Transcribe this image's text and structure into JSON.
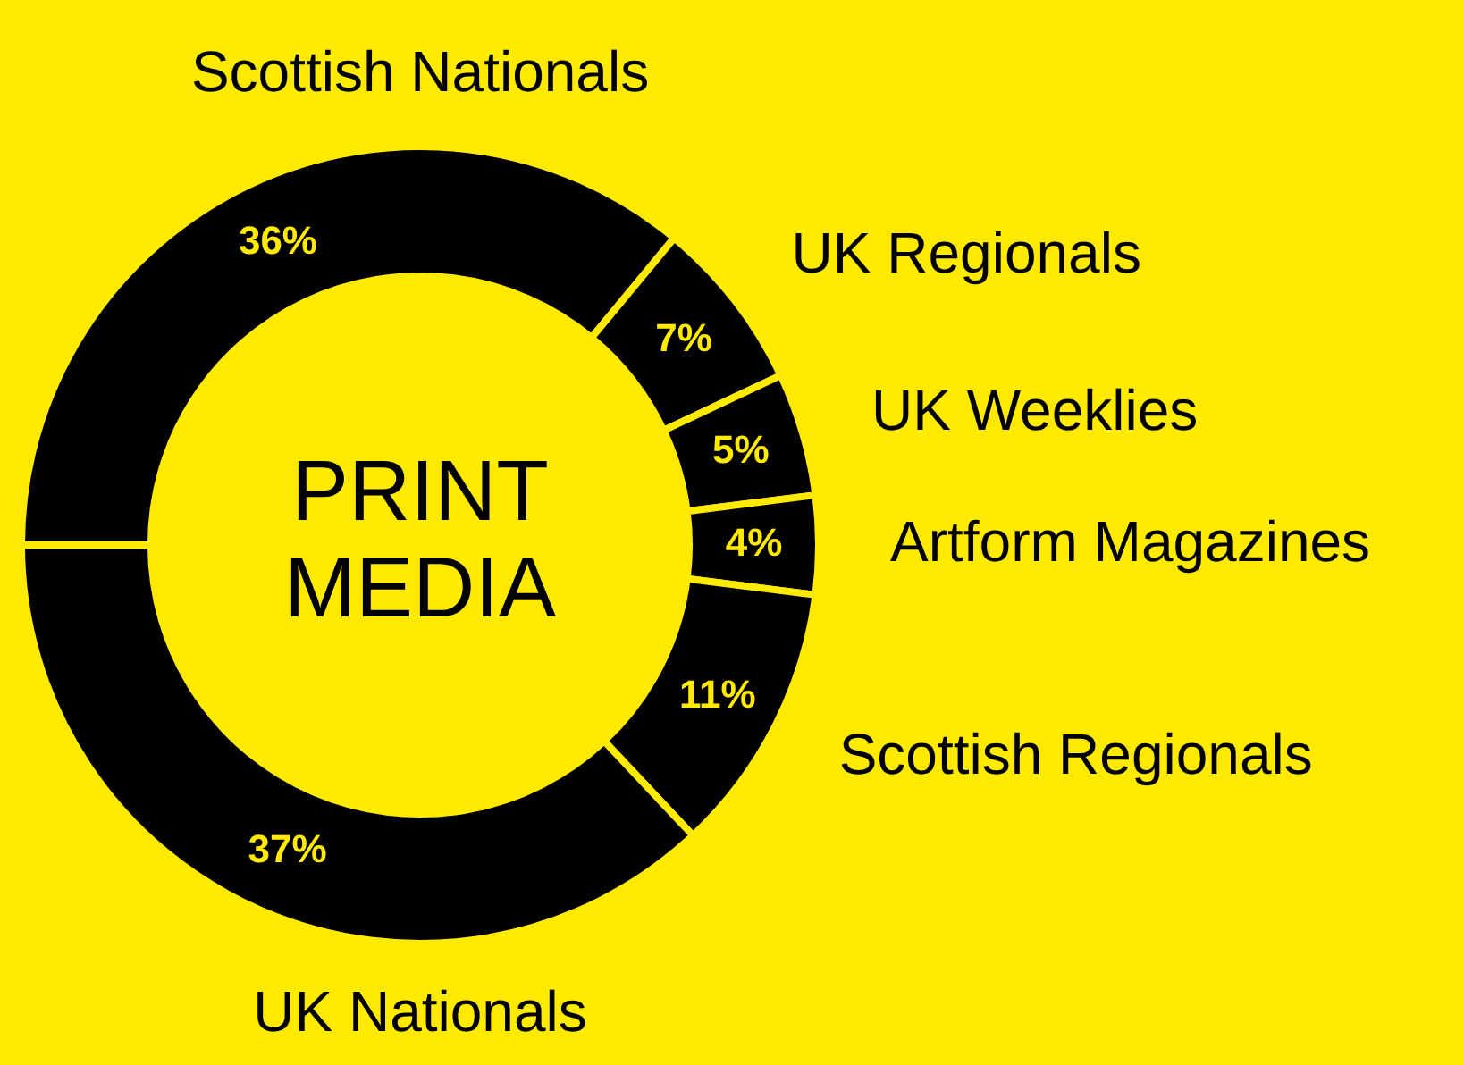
{
  "chart_data": {
    "type": "donut",
    "title": "PRINT MEDIA",
    "categories": [
      "Scottish Nationals",
      "UK Regionals",
      "UK Weeklies",
      "Artform Magazines",
      "Scottish Regionals",
      "UK Nationals"
    ],
    "values": [
      36,
      7,
      5,
      4,
      11,
      37
    ],
    "value_labels": [
      "36%",
      "7%",
      "5%",
      "4%",
      "11%",
      "37%"
    ],
    "colors": [
      "#000000",
      "#000000",
      "#000000",
      "#000000",
      "#000000",
      "#000000"
    ],
    "legend": false
  }
}
